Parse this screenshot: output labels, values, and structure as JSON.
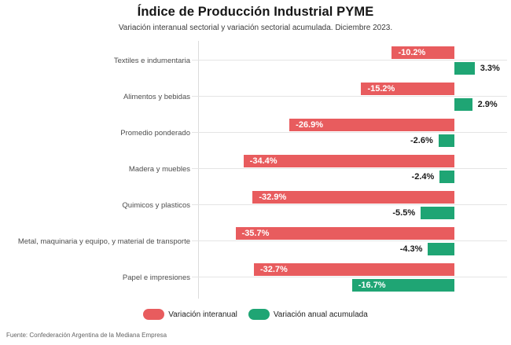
{
  "header": {
    "title": "Índice de Producción Industrial PYME",
    "subtitle": "Variación interanual sectorial y variación sectorial acumulada. Diciembre 2023."
  },
  "chart_data": {
    "type": "bar",
    "orientation": "horizontal",
    "unit": "%",
    "title": "Índice de Producción Industrial PYME",
    "subtitle": "Variación interanual sectorial y variación sectorial acumulada. Diciembre 2023.",
    "categories": [
      "Textiles e indumentaria",
      "Alimentos y bebidas",
      "Promedio ponderado",
      "Madera y muebles",
      "Quimicos y plasticos",
      "Metal, maquinaria y equipo, y material de transporte",
      "Papel e impresiones"
    ],
    "series": [
      {
        "name": "Variación interanual",
        "color": "#e85c5e",
        "values": [
          -10.2,
          -15.2,
          -26.9,
          -34.4,
          -32.9,
          -35.7,
          -32.7
        ]
      },
      {
        "name": "Variación anual acumulada",
        "color": "#1fa574",
        "values": [
          3.3,
          2.9,
          -2.6,
          -2.4,
          -5.5,
          -4.3,
          -16.7
        ]
      }
    ],
    "xlim": [
      -41.8,
      9.2
    ],
    "grid": "horizontal-row-lines",
    "legend_position": "bottom",
    "value_label_format": "{value}%"
  },
  "colors": {
    "interanual": "#e85c5e",
    "acumulada": "#1fa574",
    "grid_line": "#e4e4e4",
    "axis_line": "#dcdcdc"
  },
  "footer": {
    "source": "Fuente: Confederación Argentina de la Mediana Empresa"
  }
}
